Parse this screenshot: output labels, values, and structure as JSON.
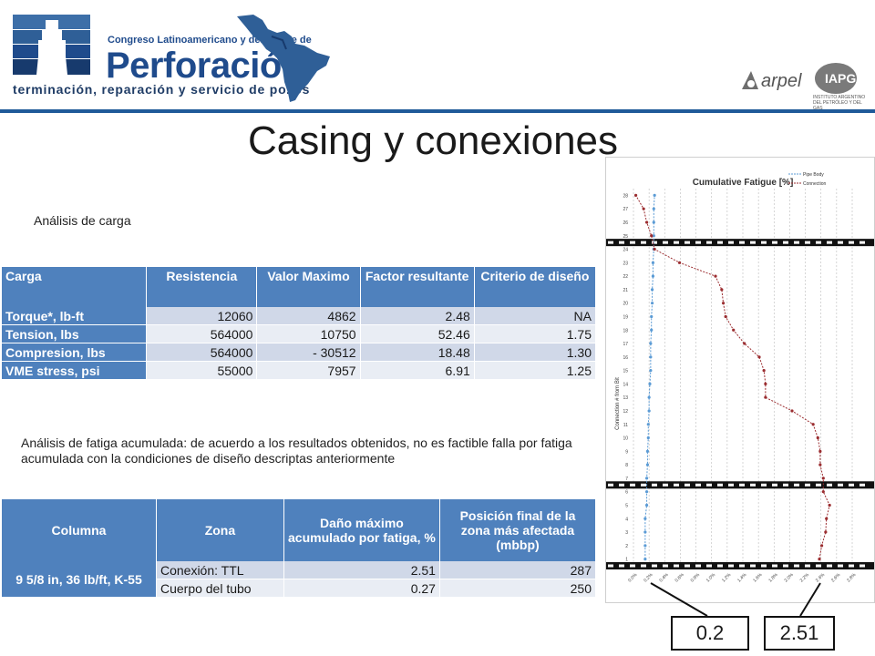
{
  "header": {
    "congreso_line1": "Congreso Latinoamericano y del Caribe de",
    "brand": "Perforación",
    "tagline": "terminación, reparación y servicio de pozos",
    "partner1": "arpel",
    "partner2": "IAPG",
    "partner2_sub": "INSTITUTO ARGENTINO DEL PETRÓLEO Y DEL GAS",
    "brand_color": "#1f4b8c"
  },
  "title": "Casing y conexiones",
  "load_analysis": {
    "caption": "Análisis de carga",
    "headers": [
      "Carga",
      "Resistencia",
      "Valor Maximo",
      "Factor resultante",
      "Criterio de diseño"
    ],
    "rows": [
      {
        "label": "Torque*, lb-ft",
        "resistencia": "12060",
        "max": "4862",
        "factor": "2.48",
        "criterio": "NA"
      },
      {
        "label": "Tension, lbs",
        "resistencia": "564000",
        "max": "10750",
        "factor": "52.46",
        "criterio": "1.75"
      },
      {
        "label": "Compresion, lbs",
        "resistencia": "564000",
        "max": "- 30512",
        "factor": "18.48",
        "criterio": "1.30"
      },
      {
        "label": "VME stress, psi",
        "resistencia": "55000",
        "max": "7957",
        "factor": "6.91",
        "criterio": "1.25"
      }
    ]
  },
  "fatigue": {
    "caption": "Análisis de fatiga acumulada: de acuerdo a los resultados obtenidos,  no es factible falla por fatiga acumulada con la condiciones de diseño descriptas anteriormente",
    "headers": [
      "Columna",
      "Zona",
      "Daño máximo acumulado por fatiga, %",
      "Posición final de la zona más afectada (mbbp)"
    ],
    "column_label": "9 5/8 in, 36 lb/ft, K-55",
    "rows": [
      {
        "zona": "Conexión: TTL",
        "dano": "2.51",
        "posicion": "287"
      },
      {
        "zona": "Cuerpo del tubo",
        "dano": "0.27",
        "posicion": "250"
      }
    ]
  },
  "chart_data": {
    "type": "line",
    "title": "Cumulative Fatigue [%]",
    "ylabel": "Connection # from Bit",
    "series": [
      {
        "name": "Pipe Body",
        "color": "#5b9bd5",
        "x": [
          0.15,
          0.15,
          0.15,
          0.15,
          0.17,
          0.17,
          0.17,
          0.18,
          0.18,
          0.19,
          0.19,
          0.2,
          0.2,
          0.21,
          0.22,
          0.22,
          0.22,
          0.23,
          0.23,
          0.24,
          0.24,
          0.25,
          0.25,
          0.26,
          0.26,
          0.26,
          0.26,
          0.27
        ]
      },
      {
        "name": "Connection",
        "color": "#9b2d30",
        "x": [
          2.38,
          2.41,
          2.46,
          2.47,
          2.51,
          2.43,
          2.43,
          2.39,
          2.39,
          2.36,
          2.3,
          2.03,
          1.69,
          1.69,
          1.67,
          1.61,
          1.42,
          1.28,
          1.18,
          1.15,
          1.13,
          1.05,
          0.59,
          0.27,
          0.23,
          0.17,
          0.13,
          0.03
        ]
      }
    ],
    "y": [
      1,
      2,
      3,
      4,
      5,
      6,
      7,
      8,
      9,
      10,
      11,
      12,
      13,
      14,
      15,
      16,
      17,
      18,
      19,
      20,
      21,
      22,
      23,
      24,
      25,
      26,
      27,
      28
    ],
    "yticks": [
      "28",
      "27",
      "26",
      "25",
      "24",
      "23",
      "22",
      "21",
      "20",
      "19",
      "18",
      "17",
      "16",
      "15",
      "14",
      "13",
      "12",
      "11",
      "10",
      "9",
      "8",
      "7",
      "6",
      "5",
      "4",
      "3",
      "2",
      "1"
    ],
    "xticks": [
      "0.0%",
      "0.2%",
      "0.4%",
      "0.6%",
      "0.8%",
      "1.0%",
      "1.2%",
      "1.4%",
      "1.6%",
      "1.8%",
      "2.0%",
      "2.2%",
      "2.4%",
      "2.6%",
      "2.8%"
    ],
    "xlim": [
      0,
      2.8
    ],
    "ylim": [
      1,
      28
    ],
    "separator_rows": [
      24.5,
      6.5,
      0.5
    ]
  },
  "callouts": {
    "left": "0.2",
    "right": "2.51"
  }
}
